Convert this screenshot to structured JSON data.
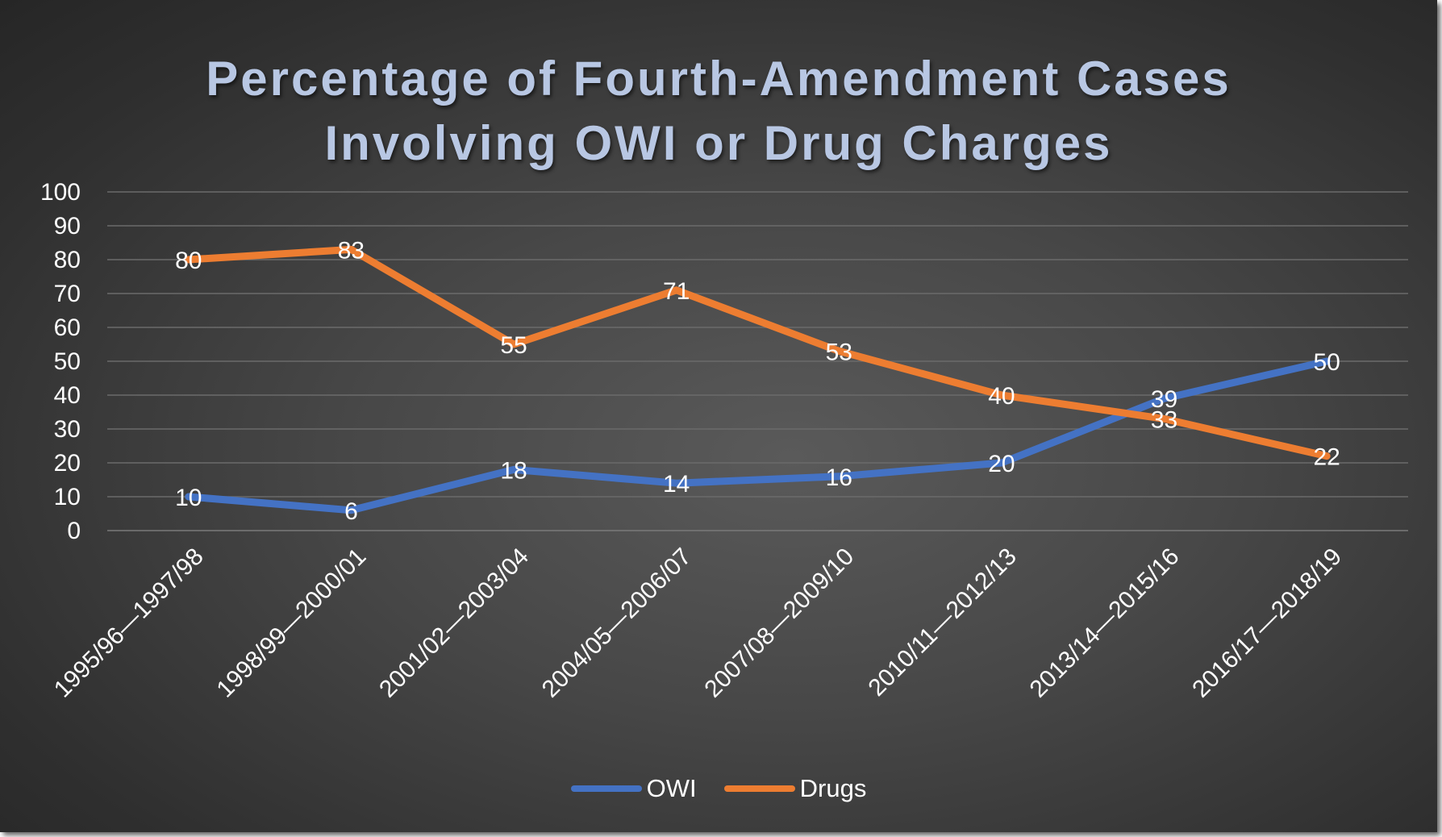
{
  "chart_data": {
    "type": "line",
    "title_lines": [
      "Percentage of Fourth-Amendment Cases",
      "Involving OWI or Drug Charges"
    ],
    "categories": [
      "1995/96—1997/98",
      "1998/99—2000/01",
      "2001/02—2003/04",
      "2004/05—2006/07",
      "2007/08—2009/10",
      "2010/11—2012/13",
      "2013/14—2015/16",
      "2016/17—2018/19"
    ],
    "series": [
      {
        "name": "OWI",
        "values": [
          10,
          6,
          18,
          14,
          16,
          20,
          39,
          50
        ],
        "color": "#4472c4"
      },
      {
        "name": "Drugs",
        "values": [
          80,
          83,
          55,
          71,
          53,
          40,
          33,
          22
        ],
        "color": "#ed7d31"
      }
    ],
    "ylim": [
      0,
      100
    ],
    "yticks": [
      0,
      10,
      20,
      30,
      40,
      50,
      60,
      70,
      80,
      90,
      100
    ],
    "grid": true,
    "data_labels": true,
    "legend_position": "bottom",
    "xlabel": "",
    "ylabel": ""
  }
}
